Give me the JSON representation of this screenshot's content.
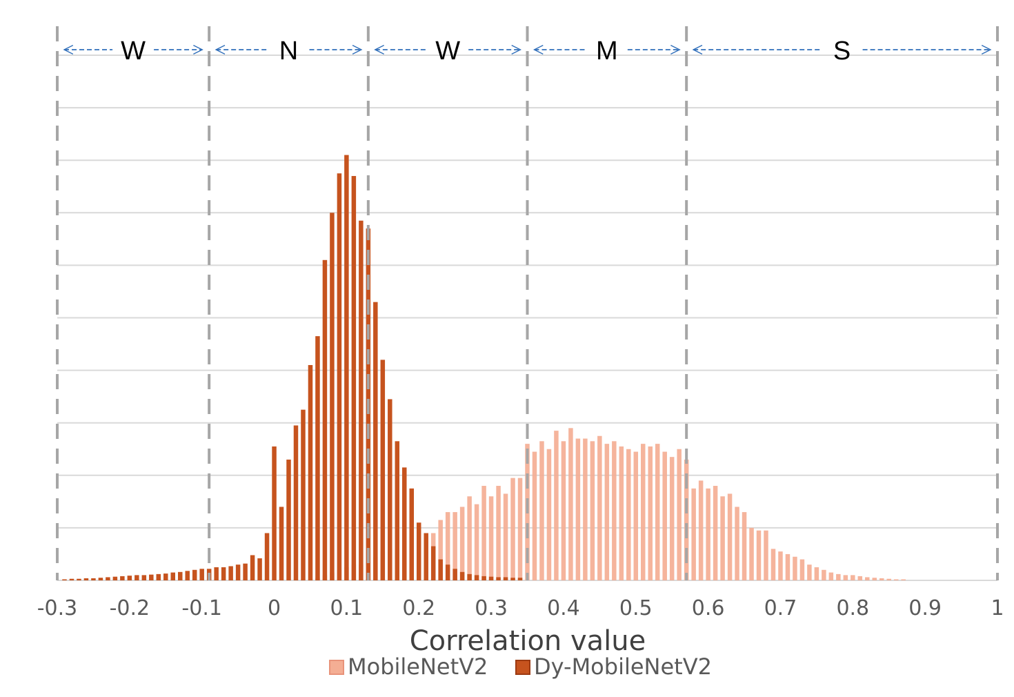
{
  "chart_data": {
    "type": "bar",
    "title": "",
    "xlabel": "Correlation value",
    "ylabel": "",
    "xlim": [
      -0.3,
      1.0
    ],
    "x_ticks": [
      "-0.3",
      "-0.2",
      "-0.1",
      "0",
      "0.1",
      "0.2",
      "0.3",
      "0.4",
      "0.5",
      "0.6",
      "0.7",
      "0.8",
      "0.9",
      "1"
    ],
    "y_gridlines": 10,
    "grid": true,
    "legend_position": "bottom",
    "bin_width": 0.01,
    "series": [
      {
        "name": "MobileNetV2",
        "color": "#F4AE94",
        "bins": [
          {
            "x": 0.06,
            "v": 0.05
          },
          {
            "x": 0.07,
            "v": 0.1
          },
          {
            "x": 0.08,
            "v": 0.15
          },
          {
            "x": 0.09,
            "v": 0.2
          },
          {
            "x": 0.1,
            "v": 0.25
          },
          {
            "x": 0.11,
            "v": 0.3
          },
          {
            "x": 0.12,
            "v": 0.3
          },
          {
            "x": 0.13,
            "v": 0.35
          },
          {
            "x": 0.14,
            "v": 0.45
          },
          {
            "x": 0.15,
            "v": 0.55
          },
          {
            "x": 0.16,
            "v": 0.6
          },
          {
            "x": 0.17,
            "v": 0.6
          },
          {
            "x": 0.18,
            "v": 0.65
          },
          {
            "x": 0.19,
            "v": 0.7
          },
          {
            "x": 0.2,
            "v": 0.75
          },
          {
            "x": 0.21,
            "v": 0.9
          },
          {
            "x": 0.22,
            "v": 0.9
          },
          {
            "x": 0.23,
            "v": 1.15
          },
          {
            "x": 0.24,
            "v": 1.3
          },
          {
            "x": 0.25,
            "v": 1.3
          },
          {
            "x": 0.26,
            "v": 1.4
          },
          {
            "x": 0.27,
            "v": 1.6
          },
          {
            "x": 0.28,
            "v": 1.45
          },
          {
            "x": 0.29,
            "v": 1.8
          },
          {
            "x": 0.3,
            "v": 1.6
          },
          {
            "x": 0.31,
            "v": 1.8
          },
          {
            "x": 0.32,
            "v": 1.65
          },
          {
            "x": 0.33,
            "v": 1.95
          },
          {
            "x": 0.34,
            "v": 1.95
          },
          {
            "x": 0.35,
            "v": 2.6
          },
          {
            "x": 0.36,
            "v": 2.45
          },
          {
            "x": 0.37,
            "v": 2.65
          },
          {
            "x": 0.38,
            "v": 2.5
          },
          {
            "x": 0.39,
            "v": 2.85
          },
          {
            "x": 0.4,
            "v": 2.65
          },
          {
            "x": 0.41,
            "v": 2.9
          },
          {
            "x": 0.42,
            "v": 2.7
          },
          {
            "x": 0.43,
            "v": 2.7
          },
          {
            "x": 0.44,
            "v": 2.65
          },
          {
            "x": 0.45,
            "v": 2.75
          },
          {
            "x": 0.46,
            "v": 2.6
          },
          {
            "x": 0.47,
            "v": 2.65
          },
          {
            "x": 0.48,
            "v": 2.55
          },
          {
            "x": 0.49,
            "v": 2.5
          },
          {
            "x": 0.5,
            "v": 2.45
          },
          {
            "x": 0.51,
            "v": 2.6
          },
          {
            "x": 0.52,
            "v": 2.55
          },
          {
            "x": 0.53,
            "v": 2.6
          },
          {
            "x": 0.54,
            "v": 2.45
          },
          {
            "x": 0.55,
            "v": 2.35
          },
          {
            "x": 0.56,
            "v": 2.5
          },
          {
            "x": 0.57,
            "v": 2.3
          },
          {
            "x": 0.58,
            "v": 1.75
          },
          {
            "x": 0.59,
            "v": 1.9
          },
          {
            "x": 0.6,
            "v": 1.75
          },
          {
            "x": 0.61,
            "v": 1.8
          },
          {
            "x": 0.62,
            "v": 1.6
          },
          {
            "x": 0.63,
            "v": 1.65
          },
          {
            "x": 0.64,
            "v": 1.4
          },
          {
            "x": 0.65,
            "v": 1.3
          },
          {
            "x": 0.66,
            "v": 1.0
          },
          {
            "x": 0.67,
            "v": 0.95
          },
          {
            "x": 0.68,
            "v": 0.95
          },
          {
            "x": 0.69,
            "v": 0.6
          },
          {
            "x": 0.7,
            "v": 0.55
          },
          {
            "x": 0.71,
            "v": 0.5
          },
          {
            "x": 0.72,
            "v": 0.45
          },
          {
            "x": 0.73,
            "v": 0.4
          },
          {
            "x": 0.74,
            "v": 0.3
          },
          {
            "x": 0.75,
            "v": 0.25
          },
          {
            "x": 0.76,
            "v": 0.2
          },
          {
            "x": 0.77,
            "v": 0.15
          },
          {
            "x": 0.78,
            "v": 0.12
          },
          {
            "x": 0.79,
            "v": 0.1
          },
          {
            "x": 0.8,
            "v": 0.1
          },
          {
            "x": 0.81,
            "v": 0.08
          },
          {
            "x": 0.82,
            "v": 0.06
          },
          {
            "x": 0.83,
            "v": 0.05
          },
          {
            "x": 0.84,
            "v": 0.04
          },
          {
            "x": 0.85,
            "v": 0.03
          },
          {
            "x": 0.86,
            "v": 0.02
          },
          {
            "x": 0.87,
            "v": 0.02
          }
        ]
      },
      {
        "name": "Dy-MobileNetV2",
        "color": "#C6531E",
        "bins": [
          {
            "x": -0.29,
            "v": 0.02
          },
          {
            "x": -0.28,
            "v": 0.03
          },
          {
            "x": -0.27,
            "v": 0.03
          },
          {
            "x": -0.26,
            "v": 0.04
          },
          {
            "x": -0.25,
            "v": 0.04
          },
          {
            "x": -0.24,
            "v": 0.05
          },
          {
            "x": -0.23,
            "v": 0.06
          },
          {
            "x": -0.22,
            "v": 0.07
          },
          {
            "x": -0.21,
            "v": 0.08
          },
          {
            "x": -0.2,
            "v": 0.09
          },
          {
            "x": -0.19,
            "v": 0.1
          },
          {
            "x": -0.18,
            "v": 0.1
          },
          {
            "x": -0.17,
            "v": 0.11
          },
          {
            "x": -0.16,
            "v": 0.12
          },
          {
            "x": -0.15,
            "v": 0.13
          },
          {
            "x": -0.14,
            "v": 0.15
          },
          {
            "x": -0.13,
            "v": 0.16
          },
          {
            "x": -0.12,
            "v": 0.18
          },
          {
            "x": -0.11,
            "v": 0.2
          },
          {
            "x": -0.1,
            "v": 0.22
          },
          {
            "x": -0.09,
            "v": 0.22
          },
          {
            "x": -0.08,
            "v": 0.25
          },
          {
            "x": -0.07,
            "v": 0.25
          },
          {
            "x": -0.06,
            "v": 0.27
          },
          {
            "x": -0.05,
            "v": 0.3
          },
          {
            "x": -0.04,
            "v": 0.32
          },
          {
            "x": -0.03,
            "v": 0.48
          },
          {
            "x": -0.02,
            "v": 0.42
          },
          {
            "x": -0.01,
            "v": 0.9
          },
          {
            "x": 0.0,
            "v": 2.55
          },
          {
            "x": 0.01,
            "v": 1.4
          },
          {
            "x": 0.02,
            "v": 2.3
          },
          {
            "x": 0.03,
            "v": 2.95
          },
          {
            "x": 0.04,
            "v": 3.25
          },
          {
            "x": 0.05,
            "v": 4.1
          },
          {
            "x": 0.06,
            "v": 4.65
          },
          {
            "x": 0.07,
            "v": 6.1
          },
          {
            "x": 0.08,
            "v": 7.0
          },
          {
            "x": 0.09,
            "v": 7.75
          },
          {
            "x": 0.1,
            "v": 8.1
          },
          {
            "x": 0.11,
            "v": 7.7
          },
          {
            "x": 0.12,
            "v": 6.85
          },
          {
            "x": 0.13,
            "v": 6.7
          },
          {
            "x": 0.14,
            "v": 5.3
          },
          {
            "x": 0.15,
            "v": 4.2
          },
          {
            "x": 0.16,
            "v": 3.45
          },
          {
            "x": 0.17,
            "v": 2.65
          },
          {
            "x": 0.18,
            "v": 2.15
          },
          {
            "x": 0.19,
            "v": 1.75
          },
          {
            "x": 0.2,
            "v": 1.1
          },
          {
            "x": 0.21,
            "v": 0.9
          },
          {
            "x": 0.22,
            "v": 0.65
          },
          {
            "x": 0.23,
            "v": 0.4
          },
          {
            "x": 0.24,
            "v": 0.3
          },
          {
            "x": 0.25,
            "v": 0.22
          },
          {
            "x": 0.26,
            "v": 0.16
          },
          {
            "x": 0.27,
            "v": 0.12
          },
          {
            "x": 0.28,
            "v": 0.1
          },
          {
            "x": 0.29,
            "v": 0.08
          },
          {
            "x": 0.3,
            "v": 0.07
          },
          {
            "x": 0.31,
            "v": 0.06
          },
          {
            "x": 0.32,
            "v": 0.06
          },
          {
            "x": 0.33,
            "v": 0.05
          },
          {
            "x": 0.34,
            "v": 0.05
          }
        ]
      }
    ],
    "region_boundaries": [
      -0.3,
      -0.09,
      0.13,
      0.35,
      0.57,
      1.0
    ],
    "regions": [
      {
        "label": "W",
        "from": -0.3,
        "to": -0.09
      },
      {
        "label": "N",
        "from": -0.09,
        "to": 0.13
      },
      {
        "label": "W",
        "from": 0.13,
        "to": 0.35
      },
      {
        "label": "M",
        "from": 0.35,
        "to": 0.57
      },
      {
        "label": "S",
        "from": 0.57,
        "to": 1.0
      }
    ],
    "colors": {
      "arrow": "#2F6EBA",
      "boundary": "#A6A6A6",
      "grid": "#D9D9D9"
    }
  }
}
